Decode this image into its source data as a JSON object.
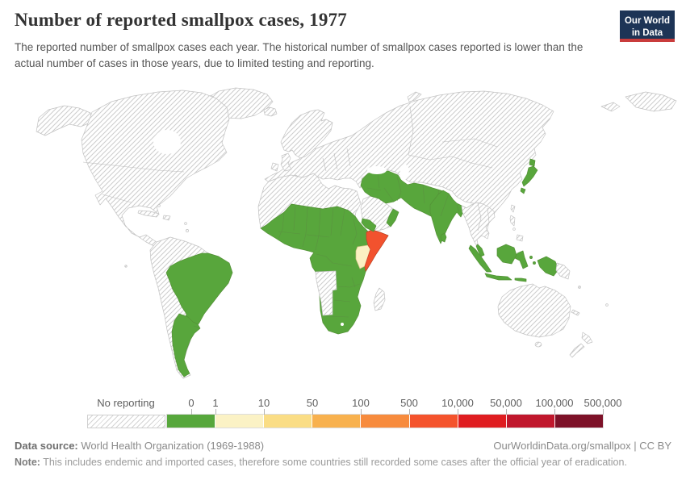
{
  "header": {
    "title": "Number of reported smallpox cases, 1977",
    "subtitle": "The reported number of smallpox cases each year. The historical number of smallpox cases reported is lower than the actual number of cases in those years, due to limited testing and reporting.",
    "logo": {
      "line1": "Our World",
      "line2": "in Data"
    }
  },
  "legend": {
    "no_reporting_label": "No reporting",
    "tick_labels": [
      "0",
      "1",
      "10",
      "50",
      "100",
      "500",
      "10,000",
      "50,000",
      "100,000",
      "500,000"
    ],
    "colors": [
      "#57A73C",
      "#FBF2C5",
      "#FADD85",
      "#F8B14E",
      "#F78B3D",
      "#F4532C",
      "#DF1D20",
      "#C0172C",
      "#7D1128"
    ]
  },
  "map": {
    "colors": {
      "reporting_zero_green": "#58A63C",
      "kenya_pale_yellow": "#FBF1C3",
      "somalia_orange_red": "#F2522E",
      "hatch_line": "#cdcdcd"
    }
  },
  "chart_data": {
    "type": "choropleth",
    "title": "Number of reported smallpox cases, 1977",
    "year": 1977,
    "unit": "reported smallpox cases",
    "bins": [
      "0",
      "1",
      "10",
      "50",
      "100",
      "500",
      "10,000",
      "50,000",
      "100,000",
      "500,000"
    ],
    "bin_colors": [
      "#57A73C",
      "#FBF2C5",
      "#FADD85",
      "#F8B14E",
      "#F78B3D",
      "#F4532C",
      "#DF1D20",
      "#C0172C",
      "#7D1128"
    ],
    "no_reporting_style": "diagonal-hatch",
    "observations": [
      {
        "region": "Somalia",
        "bin": "500–10,000",
        "color": "#F2522E"
      },
      {
        "region": "Kenya",
        "bin": "1–10",
        "color": "#FBF1C3"
      },
      {
        "region": "Brazil, Argentina, Uruguay, West & Central Africa, Sudan, Ethiopia, East & Southern Africa, Turkey, Syria, Iraq, Iran, Afghanistan, Pakistan, India, Bangladesh, Sri Lanka, Yemen, Oman, Japan, Indonesia, Malaysia",
        "bin": "0",
        "color": "#58A63C"
      },
      {
        "region": "North America, Greenland, Europe, USSR, China, Korea, Southeast Asia, Philippines, Papua New Guinea, Australia, New Zealand, North Africa, Mauritania, Angola, Namibia, Madagascar, Saudi Arabia, Mexico, Caribbean, Colombia, Venezuela, Guyanas, Ecuador, Peru, Bolivia, Chile, Paraguay",
        "bin": "No reporting",
        "color": "hatch"
      }
    ]
  },
  "footer": {
    "source_label": "Data source:",
    "source_text": " World Health Organization (1969-1988)",
    "right_text": "OurWorldinData.org/smallpox | CC BY",
    "note_label": "Note:",
    "note_text": " This includes endemic and imported cases, therefore some countries still recorded some cases after the official year of eradication."
  }
}
